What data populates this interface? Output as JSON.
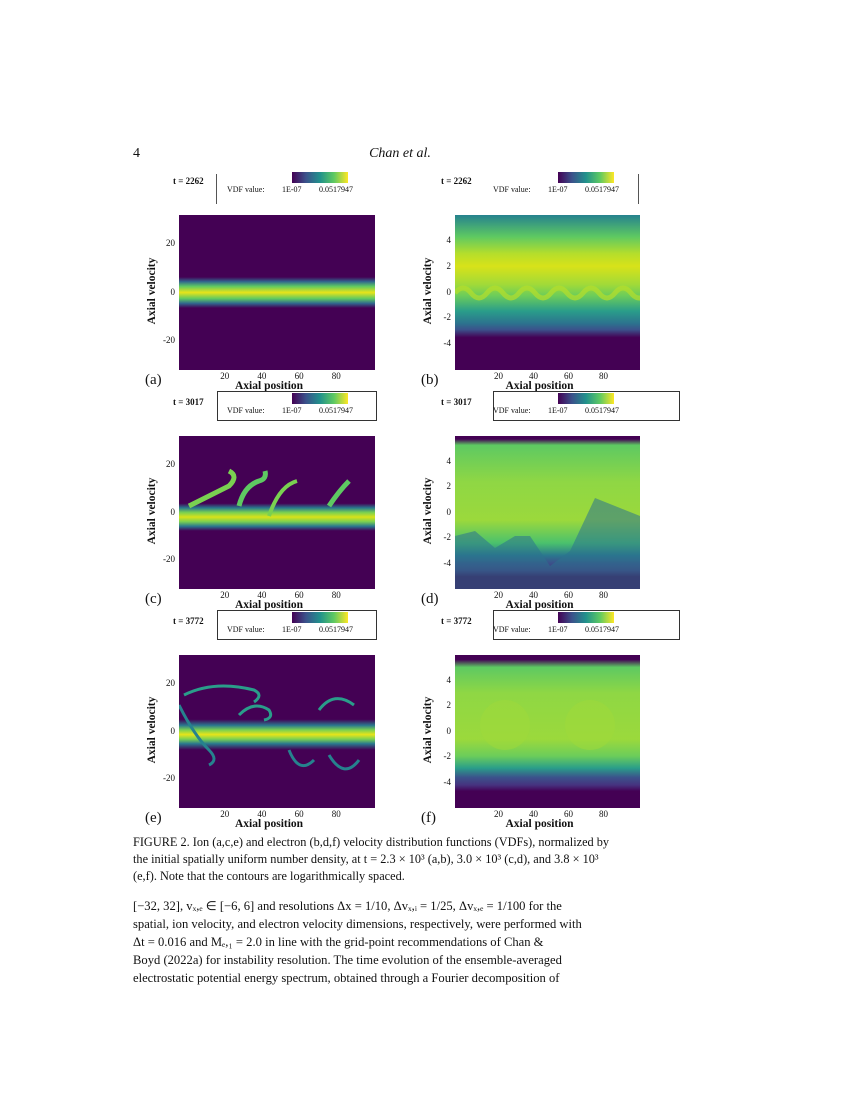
{
  "header": {
    "page_number": "4",
    "running_title": "Chan et al."
  },
  "figure": {
    "legend_label": "VDF value:",
    "colorbar_min": "1E-07",
    "colorbar_max": "0.0517947",
    "colormap": [
      "#440154",
      "#3b528b",
      "#21918c",
      "#5ec962",
      "#fde725"
    ],
    "xlabel": "Axial position",
    "ylabel": "Axial velocity",
    "panels": [
      {
        "label": "(a)",
        "time": "t = 2262",
        "species": "ion",
        "xticks": [
          "20",
          "40",
          "60",
          "80"
        ],
        "yticks": [
          "20",
          "0",
          "-20"
        ],
        "ylim": [
          -32,
          32
        ]
      },
      {
        "label": "(b)",
        "time": "t = 2262",
        "species": "electron",
        "xticks": [
          "20",
          "40",
          "60",
          "80"
        ],
        "yticks": [
          "4",
          "2",
          "0",
          "-2",
          "-4"
        ],
        "ylim": [
          -6,
          6
        ]
      },
      {
        "label": "(c)",
        "time": "t = 3017",
        "species": "ion",
        "xticks": [
          "20",
          "40",
          "60",
          "80"
        ],
        "yticks": [
          "20",
          "0",
          "-20"
        ],
        "ylim": [
          -32,
          32
        ]
      },
      {
        "label": "(d)",
        "time": "t = 3017",
        "species": "electron",
        "xticks": [
          "20",
          "40",
          "60",
          "80"
        ],
        "yticks": [
          "4",
          "2",
          "0",
          "-2",
          "-4"
        ],
        "ylim": [
          -6,
          6
        ]
      },
      {
        "label": "(e)",
        "time": "t = 3772",
        "species": "ion",
        "xticks": [
          "20",
          "40",
          "60",
          "80"
        ],
        "yticks": [
          "20",
          "0",
          "-20"
        ],
        "ylim": [
          -32,
          32
        ]
      },
      {
        "label": "(f)",
        "time": "t = 3772",
        "species": "electron",
        "xticks": [
          "20",
          "40",
          "60",
          "80"
        ],
        "yticks": [
          "4",
          "2",
          "0",
          "-2",
          "-4"
        ],
        "ylim": [
          -6,
          6
        ]
      }
    ],
    "xlim": [
      0,
      100
    ]
  },
  "caption": {
    "lines": [
      "FIGURE 2. Ion (a,c,e) and electron (b,d,f) velocity distribution functions (VDFs), normalized by",
      "the initial spatially uniform number density, at t = 2.3 × 10³ (a,b), 3.0 × 10³ (c,d), and 3.8 × 10³",
      "(e,f). Note that the contours are logarithmically spaced."
    ]
  },
  "body": {
    "lines": [
      "[−32, 32], vₓ,ₑ ∈ [−6, 6] and resolutions Δx = 1/10, Δvₓ,ᵢ = 1/25, Δvₓ,ₑ = 1/100 for the",
      "spatial, ion velocity, and electron velocity dimensions, respectively, were performed with",
      "Δt = 0.016 and Mₑ,₁ = 2.0 in line with the grid-point recommendations of Chan &",
      "Boyd (2022a) for instability resolution. The time evolution of the ensemble-averaged",
      "electrostatic potential energy spectrum, obtained through a Fourier decomposition of"
    ]
  }
}
